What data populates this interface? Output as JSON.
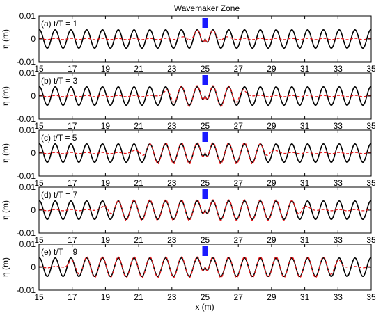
{
  "figure": {
    "header_label": "Wavemaker Zone",
    "xlabel": "x (m)"
  },
  "colors": {
    "target_wave": "#000000",
    "generated_wave": "#e8191c",
    "wavemaker_marker": "#1a1aff",
    "axes": "#000000"
  },
  "chart_data": [
    {
      "type": "line",
      "label": "(a) t/T = 1",
      "ylabel": "η (m)",
      "xlim": [
        15,
        35
      ],
      "ylim": [
        -0.01,
        0.01
      ],
      "xticks": [
        15,
        17,
        19,
        21,
        23,
        25,
        27,
        29,
        31,
        33,
        35
      ],
      "yticks": [
        0.01,
        0,
        -0.01
      ],
      "ytick_labels": [
        "0.01",
        "0",
        "-0.01"
      ],
      "wavemaker_x": 25,
      "series": [
        {
          "style": "solid",
          "color": "#000000",
          "amplitude": 0.004,
          "wavelength": 0.95,
          "x_range": [
            15,
            35
          ],
          "source_x": 25
        },
        {
          "style": "dashed",
          "color": "#e8191c",
          "amplitude": 0.0045,
          "wavelength": 0.95,
          "x_range": [
            15,
            35
          ],
          "source_x": 25,
          "front_distance": 1.0
        }
      ]
    },
    {
      "type": "line",
      "label": "(b) t/T = 3",
      "ylabel": "η (m)",
      "xlim": [
        15,
        35
      ],
      "ylim": [
        -0.01,
        0.01
      ],
      "xticks": [
        15,
        17,
        19,
        21,
        23,
        25,
        27,
        29,
        31,
        33,
        35
      ],
      "yticks": [
        0.01,
        0,
        -0.01
      ],
      "ytick_labels": [
        "0.01",
        "0",
        "-0.01"
      ],
      "wavemaker_x": 25,
      "series": [
        {
          "style": "solid",
          "color": "#000000",
          "amplitude": 0.004,
          "wavelength": 0.95,
          "x_range": [
            15,
            35
          ],
          "source_x": 25
        },
        {
          "style": "dashed",
          "color": "#e8191c",
          "amplitude": 0.0045,
          "wavelength": 0.95,
          "x_range": [
            15,
            35
          ],
          "source_x": 25,
          "front_distance": 2.4
        }
      ]
    },
    {
      "type": "line",
      "label": "(c) t/T = 5",
      "ylabel": "η (m)",
      "xlim": [
        15,
        35
      ],
      "ylim": [
        -0.01,
        0.01
      ],
      "xticks": [
        15,
        17,
        19,
        21,
        23,
        25,
        27,
        29,
        31,
        33,
        35
      ],
      "yticks": [
        0.01,
        0,
        -0.01
      ],
      "ytick_labels": [
        "0.01",
        "0",
        "-0.01"
      ],
      "wavemaker_x": 25,
      "series": [
        {
          "style": "solid",
          "color": "#000000",
          "amplitude": 0.004,
          "wavelength": 0.95,
          "x_range": [
            15,
            35
          ],
          "source_x": 25
        },
        {
          "style": "dashed",
          "color": "#e8191c",
          "amplitude": 0.0045,
          "wavelength": 0.95,
          "x_range": [
            15,
            35
          ],
          "source_x": 25,
          "front_distance": 4.0
        }
      ]
    },
    {
      "type": "line",
      "label": "(d) t/T = 7",
      "ylabel": "η (m)",
      "xlim": [
        15,
        35
      ],
      "ylim": [
        -0.01,
        0.01
      ],
      "xticks": [
        15,
        17,
        19,
        21,
        23,
        25,
        27,
        29,
        31,
        33,
        35
      ],
      "yticks": [
        0.01,
        0,
        -0.01
      ],
      "ytick_labels": [
        "0.01",
        "0",
        "-0.01"
      ],
      "wavemaker_x": 25,
      "series": [
        {
          "style": "solid",
          "color": "#000000",
          "amplitude": 0.004,
          "wavelength": 0.95,
          "x_range": [
            15,
            35
          ],
          "source_x": 25
        },
        {
          "style": "dashed",
          "color": "#e8191c",
          "amplitude": 0.0045,
          "wavelength": 0.95,
          "x_range": [
            15,
            35
          ],
          "source_x": 25,
          "front_distance": 6.0
        }
      ]
    },
    {
      "type": "line",
      "label": "(e) t/T = 9",
      "ylabel": "η (m)",
      "xlim": [
        15,
        35
      ],
      "ylim": [
        -0.01,
        0.01
      ],
      "xticks": [
        15,
        17,
        19,
        21,
        23,
        25,
        27,
        29,
        31,
        33,
        35
      ],
      "yticks": [
        0.01,
        0,
        -0.01
      ],
      "ytick_labels": [
        "0.01",
        "0",
        "-0.01"
      ],
      "wavemaker_x": 25,
      "series": [
        {
          "style": "solid",
          "color": "#000000",
          "amplitude": 0.004,
          "wavelength": 0.95,
          "x_range": [
            15,
            35
          ],
          "source_x": 25
        },
        {
          "style": "dashed",
          "color": "#e8191c",
          "amplitude": 0.0045,
          "wavelength": 0.95,
          "x_range": [
            15,
            35
          ],
          "source_x": 25,
          "front_distance": 8.2
        }
      ]
    }
  ]
}
